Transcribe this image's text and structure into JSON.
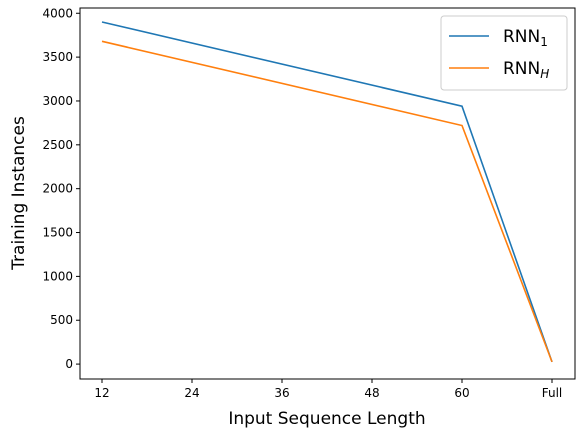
{
  "chart_data": {
    "type": "line",
    "categories": [
      "12",
      "24",
      "36",
      "48",
      "60",
      "Full"
    ],
    "xlabel": "Input Sequence Length",
    "ylabel": "Training Instances",
    "ylim": [
      -170,
      4060
    ],
    "yticks": [
      0,
      500,
      1000,
      1500,
      2000,
      2500,
      3000,
      3500,
      4000
    ],
    "grid": false,
    "legend_position": "top-right",
    "series": [
      {
        "name": "RNN",
        "name_subscript": "1",
        "color": "#1f77b4",
        "points": [
          {
            "x": "12",
            "y": 3900
          },
          {
            "x": "60",
            "y": 2940
          },
          {
            "x": "Full",
            "y": 25
          }
        ]
      },
      {
        "name": "RNN",
        "name_subscript": "H",
        "color": "#ff7f0e",
        "points": [
          {
            "x": "12",
            "y": 3680
          },
          {
            "x": "60",
            "y": 2720
          },
          {
            "x": "Full",
            "y": 25
          }
        ]
      }
    ]
  }
}
